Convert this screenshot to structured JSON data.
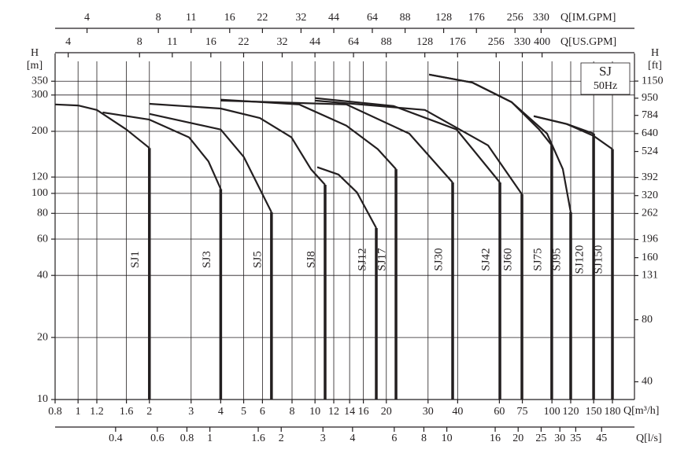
{
  "chart_data": {
    "type": "line",
    "title": "SJ",
    "subtitle": "50Hz",
    "xlabel": "Q[m³/h]",
    "xscale": "log",
    "xlim": [
      0.8,
      223
    ],
    "xticks": [
      0.8,
      1,
      1.2,
      1.6,
      2,
      3,
      4,
      5,
      6,
      8,
      10,
      12,
      14,
      16,
      20,
      30,
      40,
      60,
      75,
      100,
      120,
      150,
      180
    ],
    "ylabel": "H",
    "yunit": "[m]",
    "yscale": "log",
    "ylim": [
      10,
      437
    ],
    "yticks": [
      10,
      20,
      40,
      60,
      80,
      100,
      120,
      200,
      300,
      350
    ],
    "y2label": "H",
    "y2unit": "[ft]",
    "y2lim": [
      32.81,
      1433.7
    ],
    "y2ticks": [
      40,
      80,
      131,
      160,
      196,
      262,
      320,
      392,
      524,
      640,
      784,
      950,
      1150
    ],
    "extra_x_axes": [
      {
        "position": "top",
        "label": "Q[IM.GPM]",
        "lim": [
          2.933,
          817.6
        ],
        "ticks": [
          4,
          8,
          11,
          16,
          22,
          32,
          44,
          64,
          88,
          128,
          176,
          256,
          330
        ]
      },
      {
        "position": "top",
        "label": "Q[US.GPM]",
        "lim": [
          3.522,
          981.8
        ],
        "ticks": [
          4,
          8,
          11,
          16,
          22,
          32,
          44,
          64,
          88,
          128,
          176,
          256,
          330,
          400
        ]
      },
      {
        "position": "bottom",
        "label": "Q[l/s]",
        "lim": [
          0.2222,
          61.94
        ],
        "ticks": [
          0.4,
          0.6,
          0.8,
          1,
          1.6,
          2,
          3,
          4,
          6,
          8,
          10,
          16,
          20,
          25,
          30,
          35,
          45
        ]
      }
    ],
    "grid": true,
    "series": [
      {
        "name": "SJ1",
        "color": "#231f20",
        "x": [
          0.8,
          1.0,
          1.2,
          1.6,
          2
        ],
        "values": [
          270,
          267,
          254,
          204,
          166
        ]
      },
      {
        "name": "SJ3",
        "color": "#231f20",
        "x": [
          1.27,
          2,
          2.94,
          3.55,
          4
        ],
        "values": [
          247,
          228,
          187,
          143,
          105
        ]
      },
      {
        "name": "SJ5",
        "color": "#231f20",
        "x": [
          2,
          4,
          5.01,
          6.07,
          6.55
        ],
        "values": [
          243,
          204,
          150,
          96.5,
          81
        ]
      },
      {
        "name": "SJ8",
        "color": "#231f20",
        "x": [
          2,
          4,
          5.85,
          7.95,
          9.61,
          11.03
        ],
        "values": [
          272,
          258,
          232,
          187,
          131,
          110
        ]
      },
      {
        "name": "SJ12",
        "color": "#231f20",
        "x": [
          10.22,
          12.56,
          15.04,
          18.14
        ],
        "values": [
          134,
          123.5,
          101,
          67.9
        ]
      },
      {
        "name": "SJ17",
        "color": "#231f20",
        "x": [
          4,
          8.57,
          13.56,
          18.4,
          21.97
        ],
        "values": [
          285,
          270,
          213,
          164,
          131
        ]
      },
      {
        "name": "SJ30",
        "color": "#231f20",
        "x": [
          4,
          13.56,
          25.0,
          38.1
        ],
        "values": [
          282,
          270,
          195,
          113
        ]
      },
      {
        "name": "SJ42",
        "color": "#231f20",
        "x": [
          10,
          21.5,
          39.6,
          60.3
        ],
        "values": [
          290,
          265,
          204,
          113
        ]
      },
      {
        "name": "SJ60",
        "color": "#231f20",
        "x": [
          10,
          29.1,
          53.7,
          74.7
        ],
        "values": [
          282,
          254,
          171,
          99
        ]
      },
      {
        "name": "SJ75",
        "color": "#231f20",
        "x": [
          30.3,
          46.1,
          67.6,
          88.4,
          99.8
        ],
        "values": [
          377,
          345,
          277,
          204,
          171
        ]
      },
      {
        "name": "SJ95",
        "color": "#231f20",
        "x": [
          30.3,
          46.1,
          67.6,
          95.4,
          111.2,
          120
        ],
        "values": [
          377,
          345,
          277,
          195,
          131,
          81
        ]
      },
      {
        "name": "SJ120",
        "color": "#231f20",
        "x": [
          83.8,
          115.5,
          149.9
        ],
        "values": [
          237,
          217,
          195
        ]
      },
      {
        "name": "SJ150",
        "color": "#231f20",
        "x": [
          83.8,
          115.5,
          149.9,
          180
        ],
        "values": [
          237,
          217,
          190,
          164
        ]
      }
    ]
  }
}
